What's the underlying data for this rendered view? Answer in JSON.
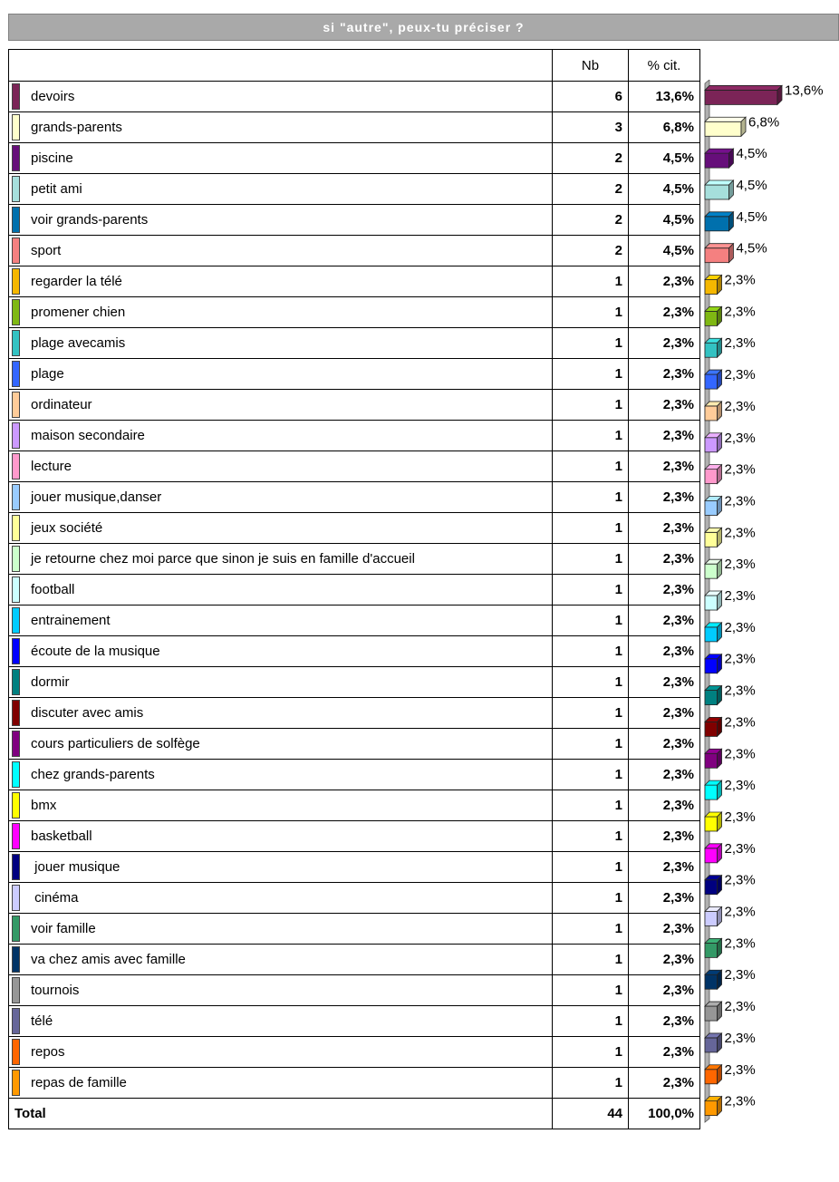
{
  "title": "si \"autre\", peux-tu préciser ?",
  "headers": {
    "nb": "Nb",
    "pct": "% cit."
  },
  "rows": [
    {
      "label": "devoirs",
      "nb": "6",
      "pct": "13,6%",
      "color": "#7b2457"
    },
    {
      "label": "grands-parents",
      "nb": "3",
      "pct": "6,8%",
      "color": "#ffffcc"
    },
    {
      "label": "piscine",
      "nb": "2",
      "pct": "4,5%",
      "color": "#660e7a"
    },
    {
      "label": "petit ami",
      "nb": "2",
      "pct": "4,5%",
      "color": "#a6dfdc"
    },
    {
      "label": "voir grands-parents",
      "nb": "2",
      "pct": "4,5%",
      "color": "#0070ad"
    },
    {
      "label": "sport",
      "nb": "2",
      "pct": "4,5%",
      "color": "#f58080"
    },
    {
      "label": "regarder la télé",
      "nb": "1",
      "pct": "2,3%",
      "color": "#f5b700"
    },
    {
      "label": "promener chien",
      "nb": "1",
      "pct": "2,3%",
      "color": "#7fb813"
    },
    {
      "label": "plage avecamis",
      "nb": "1",
      "pct": "2,3%",
      "color": "#33c2c2"
    },
    {
      "label": "plage",
      "nb": "1",
      "pct": "2,3%",
      "color": "#3366ff"
    },
    {
      "label": "ordinateur",
      "nb": "1",
      "pct": "2,3%",
      "color": "#ffcc99"
    },
    {
      "label": "maison secondaire",
      "nb": "1",
      "pct": "2,3%",
      "color": "#cc99ff"
    },
    {
      "label": "lecture",
      "nb": "1",
      "pct": "2,3%",
      "color": "#ff99cc"
    },
    {
      "label": "jouer musique,danser",
      "nb": "1",
      "pct": "2,3%",
      "color": "#99ccff"
    },
    {
      "label": "jeux société",
      "nb": "1",
      "pct": "2,3%",
      "color": "#ffff99"
    },
    {
      "label": "je retourne chez moi parce que sinon je suis en famille d'accueil",
      "nb": "1",
      "pct": "2,3%",
      "color": "#ccffcc"
    },
    {
      "label": "football",
      "nb": "1",
      "pct": "2,3%",
      "color": "#ccffff"
    },
    {
      "label": "entrainement",
      "nb": "1",
      "pct": "2,3%",
      "color": "#00ccff"
    },
    {
      "label": "écoute de la musique",
      "nb": "1",
      "pct": "2,3%",
      "color": "#0000ff"
    },
    {
      "label": "dormir",
      "nb": "1",
      "pct": "2,3%",
      "color": "#008080"
    },
    {
      "label": "discuter avec amis",
      "nb": "1",
      "pct": "2,3%",
      "color": "#800000"
    },
    {
      "label": "cours particuliers de solfège",
      "nb": "1",
      "pct": "2,3%",
      "color": "#800080"
    },
    {
      "label": "chez grands-parents",
      "nb": "1",
      "pct": "2,3%",
      "color": "#00ffff"
    },
    {
      "label": "bmx",
      "nb": "1",
      "pct": "2,3%",
      "color": "#ffff00"
    },
    {
      "label": "basketball",
      "nb": "1",
      "pct": "2,3%",
      "color": "#ff00ff"
    },
    {
      "label": " jouer musique",
      "nb": "1",
      "pct": "2,3%",
      "color": "#000080"
    },
    {
      "label": " cinéma",
      "nb": "1",
      "pct": "2,3%",
      "color": "#ccccff"
    },
    {
      "label": "voir famille",
      "nb": "1",
      "pct": "2,3%",
      "color": "#339966"
    },
    {
      "label": "va chez amis avec famille",
      "nb": "1",
      "pct": "2,3%",
      "color": "#003366"
    },
    {
      "label": "tournois",
      "nb": "1",
      "pct": "2,3%",
      "color": "#969696"
    },
    {
      "label": "télé",
      "nb": "1",
      "pct": "2,3%",
      "color": "#666699"
    },
    {
      "label": "repos",
      "nb": "1",
      "pct": "2,3%",
      "color": "#ff6600"
    },
    {
      "label": "repas de famille",
      "nb": "1",
      "pct": "2,3%",
      "color": "#ff9900"
    }
  ],
  "total": {
    "label": "Total",
    "nb": "44",
    "pct": "100,0%"
  },
  "chart_data": {
    "type": "bar",
    "orientation": "horizontal",
    "style": "3d",
    "categories": [
      "devoirs",
      "grands-parents",
      "piscine",
      "petit ami",
      "voir grands-parents",
      "sport",
      "regarder la télé",
      "promener chien",
      "plage avecamis",
      "plage",
      "ordinateur",
      "maison secondaire",
      "lecture",
      "jouer musique,danser",
      "jeux société",
      "je retourne chez moi parce que sinon je suis en famille d'accueil",
      "football",
      "entrainement",
      "écoute de la musique",
      "dormir",
      "discuter avec amis",
      "cours particuliers de solfège",
      "chez grands-parents",
      "bmx",
      "basketball",
      " jouer musique",
      " cinéma",
      "voir famille",
      "va chez amis avec famille",
      "tournois",
      "télé",
      "repos",
      "repas de famille"
    ],
    "values": [
      13.6,
      6.8,
      4.5,
      4.5,
      4.5,
      4.5,
      2.3,
      2.3,
      2.3,
      2.3,
      2.3,
      2.3,
      2.3,
      2.3,
      2.3,
      2.3,
      2.3,
      2.3,
      2.3,
      2.3,
      2.3,
      2.3,
      2.3,
      2.3,
      2.3,
      2.3,
      2.3,
      2.3,
      2.3,
      2.3,
      2.3,
      2.3,
      2.3
    ],
    "value_labels": [
      "13,6%",
      "6,8%",
      "4,5%",
      "4,5%",
      "4,5%",
      "4,5%",
      "2,3%",
      "2,3%",
      "2,3%",
      "2,3%",
      "2,3%",
      "2,3%",
      "2,3%",
      "2,3%",
      "2,3%",
      "2,3%",
      "2,3%",
      "2,3%",
      "2,3%",
      "2,3%",
      "2,3%",
      "2,3%",
      "2,3%",
      "2,3%",
      "2,3%",
      "2,3%",
      "2,3%",
      "2,3%",
      "2,3%",
      "2,3%",
      "2,3%",
      "2,3%",
      "2,3%"
    ],
    "xlim": [
      0,
      13.6
    ],
    "grid": false
  }
}
